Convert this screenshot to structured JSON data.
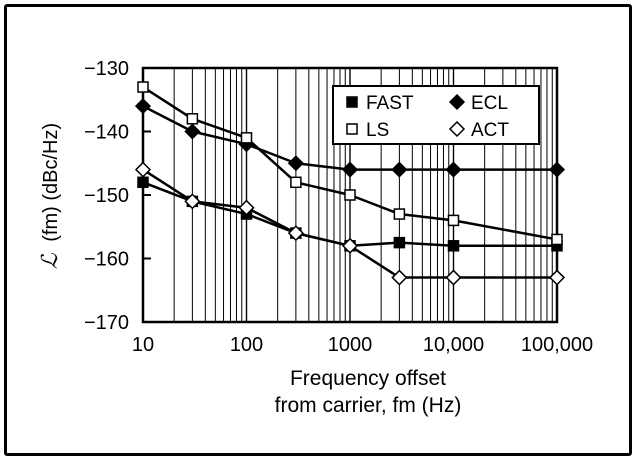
{
  "chart_data": {
    "type": "line",
    "title": "",
    "xlabel_line1": "Frequency offset",
    "xlabel_line2": "from carrier, fm (Hz)",
    "ylabel_script": "ℒ",
    "ylabel_rest": "(fm)  (dBc/Hz)",
    "xscale": "log",
    "xlim": [
      10,
      100000
    ],
    "ylim": [
      -170,
      -130
    ],
    "grid": "vertical",
    "legend_position": "top-right",
    "x_ticks": [
      10,
      100,
      1000,
      10000,
      100000
    ],
    "x_tick_labels": [
      "10",
      "100",
      "1000",
      "10,000",
      "100,000"
    ],
    "y_ticks": [
      -130,
      -140,
      -150,
      -160,
      -170
    ],
    "y_tick_labels": [
      "−130",
      "−140",
      "−150",
      "−160",
      "−170"
    ],
    "x": [
      10,
      30,
      100,
      300,
      1000,
      3000,
      10000,
      100000
    ],
    "series": [
      {
        "name": "FAST",
        "marker": "square-filled",
        "values": [
          -148,
          -151,
          -153,
          -156,
          -158,
          -157.5,
          -158,
          -158
        ]
      },
      {
        "name": "ECL",
        "marker": "diamond-filled",
        "values": [
          -136,
          -140,
          -142,
          -145,
          -146,
          -146,
          -146,
          -146
        ]
      },
      {
        "name": "LS",
        "marker": "square-open",
        "values": [
          -133,
          -138,
          -141,
          -148,
          -150,
          -153,
          -154,
          -157
        ]
      },
      {
        "name": "ACT",
        "marker": "diamond-open",
        "values": [
          -146,
          -151,
          -152,
          -156,
          -158,
          -163,
          -163,
          -163
        ]
      }
    ]
  }
}
